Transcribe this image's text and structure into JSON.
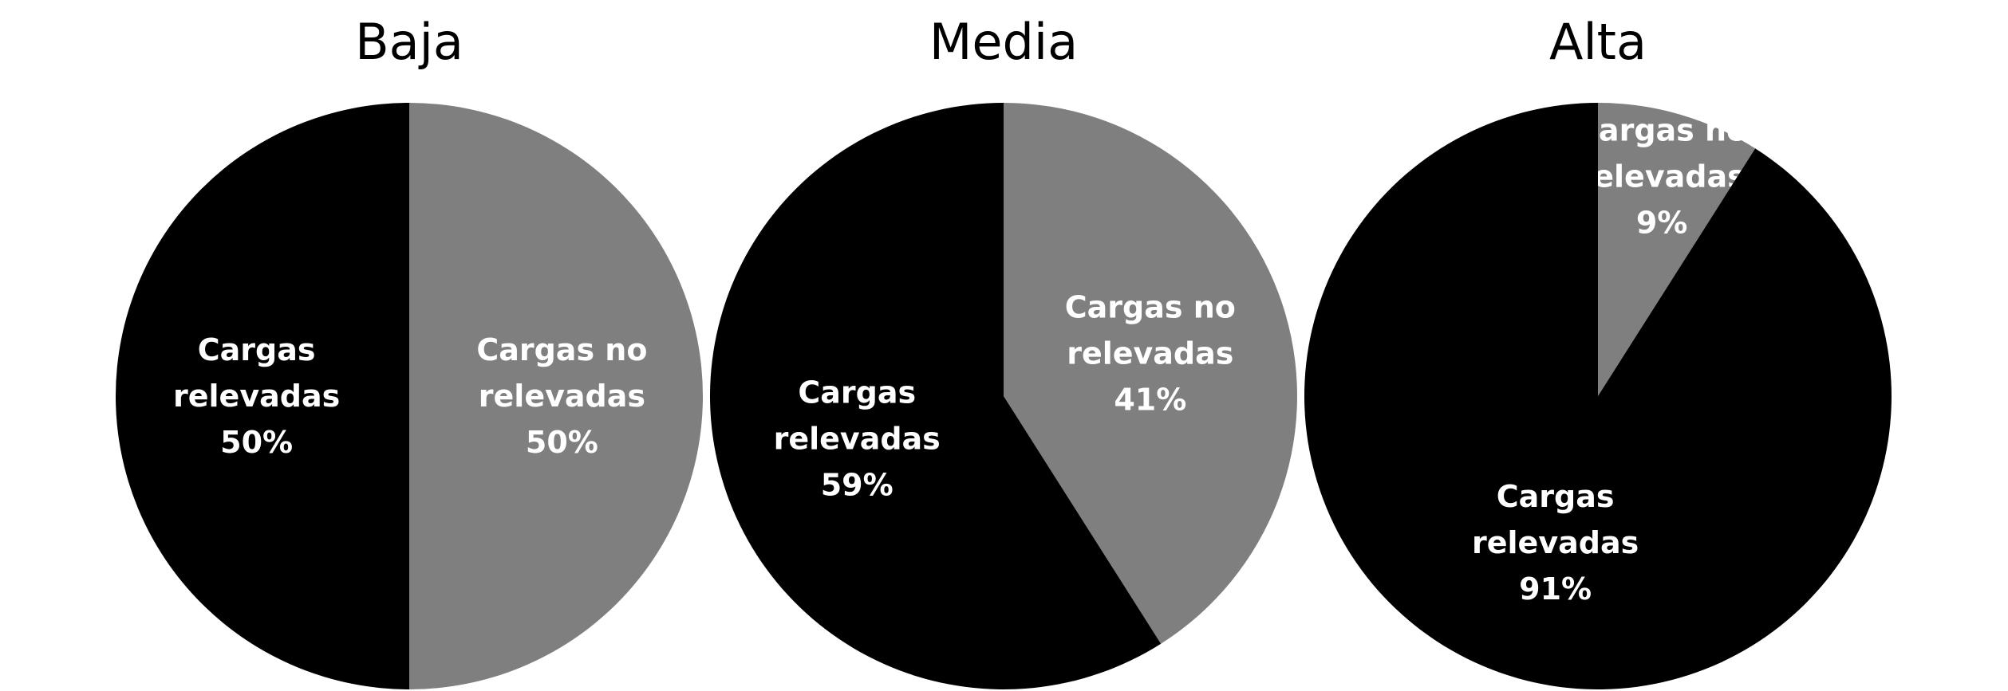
{
  "colors": {
    "relevadas": "#000000",
    "no_relevadas": "#7f7f7f",
    "label_text": "#ffffff",
    "background": "#ffffff"
  },
  "chart_data": [
    {
      "type": "pie",
      "title": "Baja",
      "slices": [
        {
          "category": "Cargas no relevadas",
          "label": [
            "Cargas no",
            "relevadas",
            "50%"
          ],
          "value": 50,
          "color": "#7f7f7f"
        },
        {
          "category": "Cargas relevadas",
          "label": [
            "Cargas",
            "relevadas",
            "50%"
          ],
          "value": 50,
          "color": "#000000"
        }
      ]
    },
    {
      "type": "pie",
      "title": "Media",
      "slices": [
        {
          "category": "Cargas no relevadas",
          "label": [
            "Cargas no",
            "relevadas",
            "41%"
          ],
          "value": 41,
          "color": "#7f7f7f"
        },
        {
          "category": "Cargas relevadas",
          "label": [
            "Cargas",
            "relevadas",
            "59%"
          ],
          "value": 59,
          "color": "#000000"
        }
      ]
    },
    {
      "type": "pie",
      "title": "Alta",
      "slices": [
        {
          "category": "Cargas no relevadas",
          "label": [
            "Cargas no",
            "relevadas",
            "9%"
          ],
          "value": 9,
          "color": "#7f7f7f"
        },
        {
          "category": "Cargas relevadas",
          "label": [
            "Cargas",
            "relevadas",
            "91%"
          ],
          "value": 91,
          "color": "#000000"
        }
      ]
    }
  ]
}
